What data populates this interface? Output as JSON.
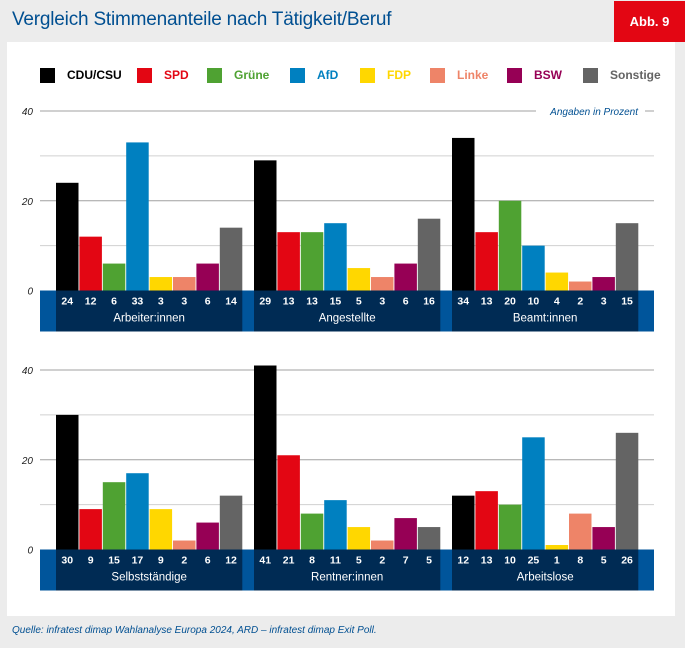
{
  "header": {
    "title": "Vergleich Stimmenanteile nach Tätigkeit/Beruf",
    "badge": "Abb. 9"
  },
  "colors": {
    "title": "#004f91",
    "badge_bg": "#e30613",
    "strip_dark": "#002b54",
    "strip_light": "#00559b",
    "grid": "#d0d0d0",
    "grid_major": "#a0a0a0"
  },
  "footer": {
    "source": "Quelle: infratest dimap Wahlanalyse Europa 2024, ARD – infratest dimap Exit Poll."
  },
  "chart_data": {
    "type": "bar",
    "title": "Vergleich Stimmenanteile nach Tätigkeit/Beruf",
    "unit_note": "Angaben in Prozent",
    "ylabel": "",
    "xlabel": "",
    "ylim": [
      0,
      40
    ],
    "yticks": [
      0,
      20,
      40
    ],
    "grid": true,
    "legend_position": "top",
    "parties": [
      {
        "name": "CDU/CSU",
        "color": "#000000",
        "label_color": "#000000"
      },
      {
        "name": "SPD",
        "color": "#e30613",
        "label_color": "#e30613"
      },
      {
        "name": "Grüne",
        "color": "#4fa232",
        "label_color": "#4fa232"
      },
      {
        "name": "AfD",
        "color": "#0080c0",
        "label_color": "#0080c0"
      },
      {
        "name": "FDP",
        "color": "#ffd700",
        "label_color": "#ffd700"
      },
      {
        "name": "Linke",
        "color": "#ee8468",
        "label_color": "#ee8468"
      },
      {
        "name": "BSW",
        "color": "#960055",
        "label_color": "#960055"
      },
      {
        "name": "Sonstige",
        "color": "#646464",
        "label_color": "#646464"
      }
    ],
    "panels": [
      {
        "groups": [
          {
            "category": "Arbeiter:innen",
            "values": [
              24,
              12,
              6,
              33,
              3,
              3,
              6,
              14
            ]
          },
          {
            "category": "Angestellte",
            "values": [
              29,
              13,
              13,
              15,
              5,
              3,
              6,
              16
            ]
          },
          {
            "category": "Beamt:innen",
            "values": [
              34,
              13,
              20,
              10,
              4,
              2,
              3,
              15
            ]
          }
        ]
      },
      {
        "groups": [
          {
            "category": "Selbstständige",
            "values": [
              30,
              9,
              15,
              17,
              9,
              2,
              6,
              12
            ]
          },
          {
            "category": "Rentner:innen",
            "values": [
              41,
              21,
              8,
              11,
              5,
              2,
              7,
              5
            ]
          },
          {
            "category": "Arbeitslose",
            "values": [
              12,
              13,
              10,
              25,
              1,
              8,
              5,
              26
            ]
          }
        ]
      }
    ]
  }
}
